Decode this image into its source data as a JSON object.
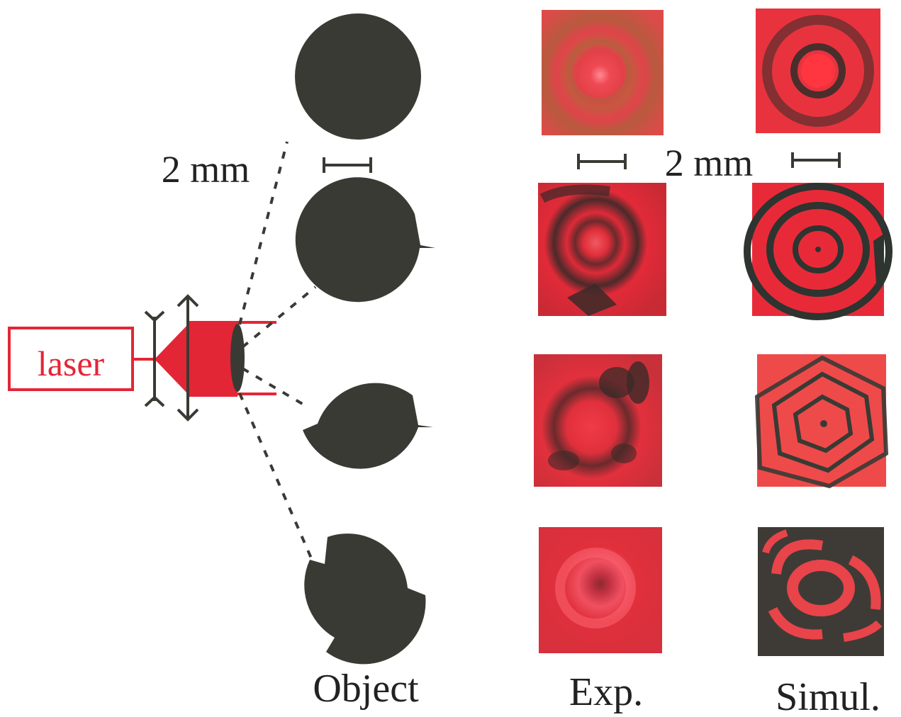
{
  "labels": {
    "laser": "laser",
    "scale_left": "2 mm",
    "scale_right": "2 mm",
    "col_object": "Object",
    "col_exp": "Exp.",
    "col_simul": "Simul."
  },
  "colors": {
    "laser_red": "#e32636",
    "object_dark": "#3a3a35",
    "pattern_red": "#e8303e",
    "pattern_dark": "#3e3b36"
  },
  "rows": [
    {
      "object": "full circular disk",
      "notches": 0
    },
    {
      "object": "disk with one notch",
      "notches": 1
    },
    {
      "object": "disk with two notches",
      "notches": 2
    },
    {
      "object": "disk with three notches",
      "notches": 3
    }
  ]
}
